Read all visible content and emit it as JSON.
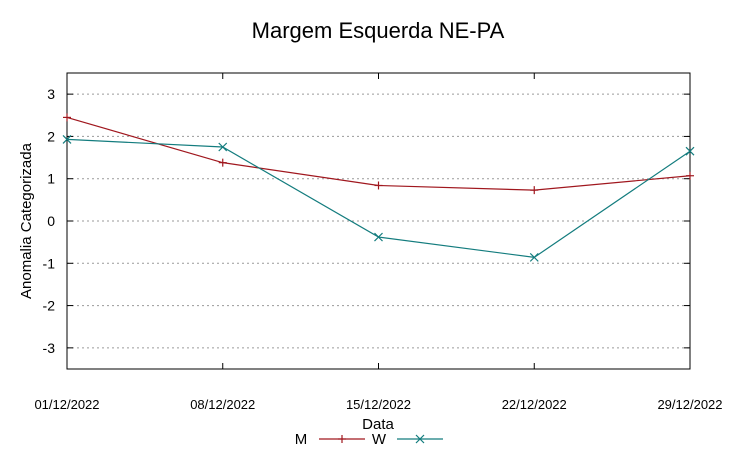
{
  "chart_data": {
    "type": "line",
    "title": "Margem Esquerda NE-PA",
    "xlabel": "Data",
    "ylabel": "Anomalia Categorizada",
    "categories": [
      "01/12/2022",
      "08/12/2022",
      "15/12/2022",
      "22/12/2022",
      "29/12/2022"
    ],
    "ylim": [
      -3.5,
      3.5
    ],
    "yticks": [
      -3,
      -2,
      -1,
      0,
      1,
      2,
      3
    ],
    "grid": true,
    "legend_position": "bottom-center",
    "series": [
      {
        "name": "M",
        "color": "#a0171e",
        "marker": "plus",
        "values": [
          2.45,
          1.38,
          0.84,
          0.73,
          1.07
        ]
      },
      {
        "name": "W",
        "color": "#137c7e",
        "marker": "cross",
        "values": [
          1.93,
          1.75,
          -0.38,
          -0.86,
          1.65
        ]
      }
    ]
  }
}
